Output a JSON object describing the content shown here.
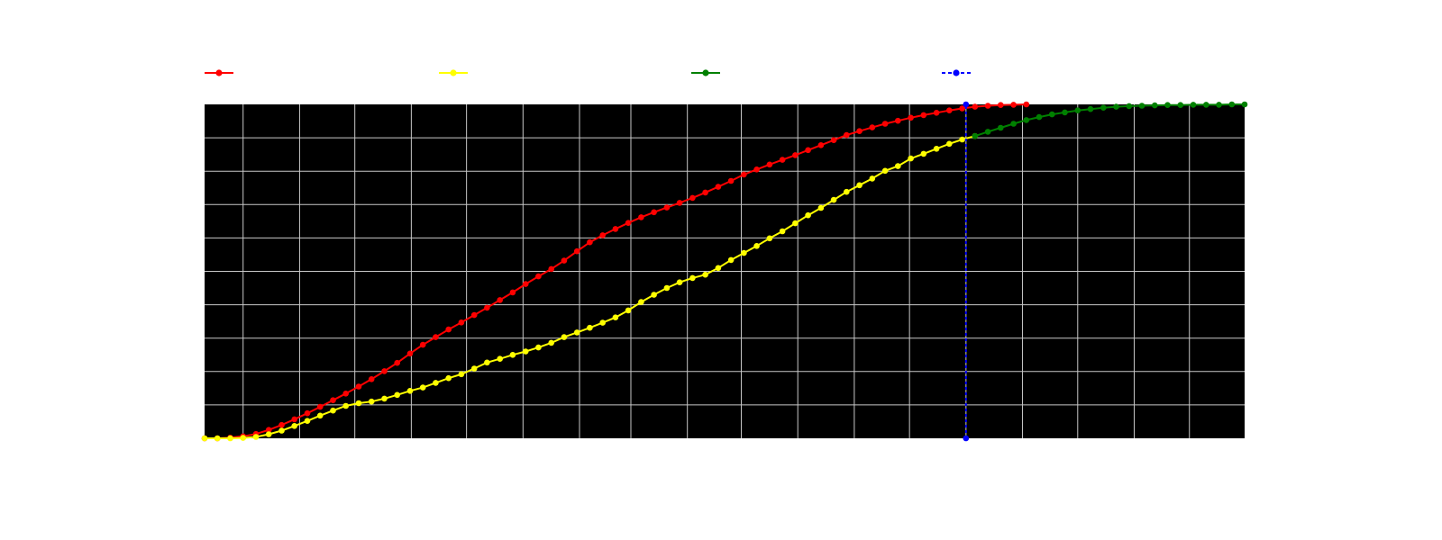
{
  "colors": {
    "background": "#ffffff",
    "plot_background": "#000000",
    "grid": "#c8c8c8",
    "red": "#ff0000",
    "yellow": "#ffff00",
    "green": "#008000",
    "blue": "#0000ff"
  },
  "chart_data": {
    "type": "line",
    "title": "",
    "xlabel": "",
    "ylabel": "",
    "grid": true,
    "legend_position": "top",
    "xlim": [
      0,
      81
    ],
    "ylim": [
      0,
      1
    ],
    "x_gridlines": [
      3,
      7.4,
      11.7,
      16.1,
      20.4,
      24.8,
      29.2,
      33.2,
      37.6,
      41.8,
      46.2,
      50.6,
      54.9,
      59.3,
      63.7,
      68,
      72.4,
      76.7
    ],
    "y_gridlines": [
      0.1,
      0.2,
      0.3,
      0.4,
      0.5,
      0.6,
      0.7,
      0.8,
      0.9
    ],
    "series": [
      {
        "key": "red",
        "name": "",
        "color": "#ff0000",
        "line_style": "solid",
        "x": [
          0,
          1,
          2,
          3,
          4,
          5,
          6,
          7,
          8,
          9,
          10,
          11,
          12,
          13,
          14,
          15,
          16,
          17,
          18,
          19,
          20,
          21,
          22,
          23,
          24,
          25,
          26,
          27,
          28,
          29,
          30,
          31,
          32,
          33,
          34,
          35,
          36,
          37,
          38,
          39,
          40,
          41,
          42,
          43,
          44,
          45,
          46,
          47,
          48,
          49,
          50,
          51,
          52,
          53,
          54,
          55,
          56,
          57,
          58,
          59,
          60,
          61,
          62,
          63,
          64
        ],
        "y": [
          0,
          0,
          0.002,
          0.006,
          0.013,
          0.025,
          0.04,
          0.057,
          0.075,
          0.094,
          0.114,
          0.134,
          0.155,
          0.177,
          0.201,
          0.226,
          0.254,
          0.28,
          0.303,
          0.326,
          0.347,
          0.369,
          0.391,
          0.414,
          0.437,
          0.462,
          0.485,
          0.507,
          0.532,
          0.56,
          0.587,
          0.608,
          0.627,
          0.645,
          0.662,
          0.677,
          0.691,
          0.705,
          0.72,
          0.736,
          0.753,
          0.771,
          0.79,
          0.805,
          0.82,
          0.834,
          0.848,
          0.863,
          0.878,
          0.893,
          0.908,
          0.92,
          0.931,
          0.942,
          0.951,
          0.96,
          0.968,
          0.975,
          0.982,
          0.988,
          0.993,
          0.996,
          0.998,
          0.999,
          1
        ]
      },
      {
        "key": "yellow",
        "name": "",
        "color": "#ffff00",
        "line_style": "solid",
        "x": [
          0,
          1,
          2,
          3,
          4,
          5,
          6,
          7,
          8,
          9,
          10,
          11,
          12,
          13,
          14,
          15,
          16,
          17,
          18,
          19,
          20,
          21,
          22,
          23,
          24,
          25,
          26,
          27,
          28,
          29,
          30,
          31,
          32,
          33,
          34,
          35,
          36,
          37,
          38,
          39,
          40,
          41,
          42,
          43,
          44,
          45,
          46,
          47,
          48,
          49,
          50,
          51,
          52,
          53,
          54,
          55,
          56,
          57,
          58,
          59,
          60
        ],
        "y": [
          0,
          0,
          0,
          0.001,
          0.004,
          0.012,
          0.023,
          0.037,
          0.052,
          0.068,
          0.083,
          0.097,
          0.105,
          0.11,
          0.119,
          0.13,
          0.142,
          0.152,
          0.166,
          0.18,
          0.192,
          0.209,
          0.227,
          0.238,
          0.25,
          0.26,
          0.272,
          0.286,
          0.303,
          0.317,
          0.331,
          0.346,
          0.362,
          0.383,
          0.408,
          0.43,
          0.45,
          0.467,
          0.48,
          0.49,
          0.51,
          0.534,
          0.555,
          0.576,
          0.599,
          0.62,
          0.644,
          0.668,
          0.69,
          0.714,
          0.738,
          0.758,
          0.778,
          0.801,
          0.815,
          0.838,
          0.852,
          0.867,
          0.882,
          0.895,
          0.905
        ]
      },
      {
        "key": "green",
        "name": "",
        "color": "#008000",
        "line_style": "solid",
        "x": [
          60,
          61,
          62,
          63,
          64,
          65,
          66,
          67,
          68,
          69,
          70,
          71,
          72,
          73,
          74,
          75,
          76,
          77,
          78,
          79,
          80,
          81
        ],
        "y": [
          0.905,
          0.918,
          0.93,
          0.942,
          0.953,
          0.962,
          0.97,
          0.976,
          0.982,
          0.986,
          0.99,
          0.993,
          0.995,
          0.996,
          0.997,
          0.998,
          0.998,
          0.999,
          0.999,
          0.999,
          1,
          1
        ]
      },
      {
        "key": "blue",
        "name": "",
        "color": "#0000ff",
        "line_style": "dashed",
        "x": [
          59.3,
          59.3
        ],
        "y": [
          0,
          1
        ]
      }
    ]
  }
}
